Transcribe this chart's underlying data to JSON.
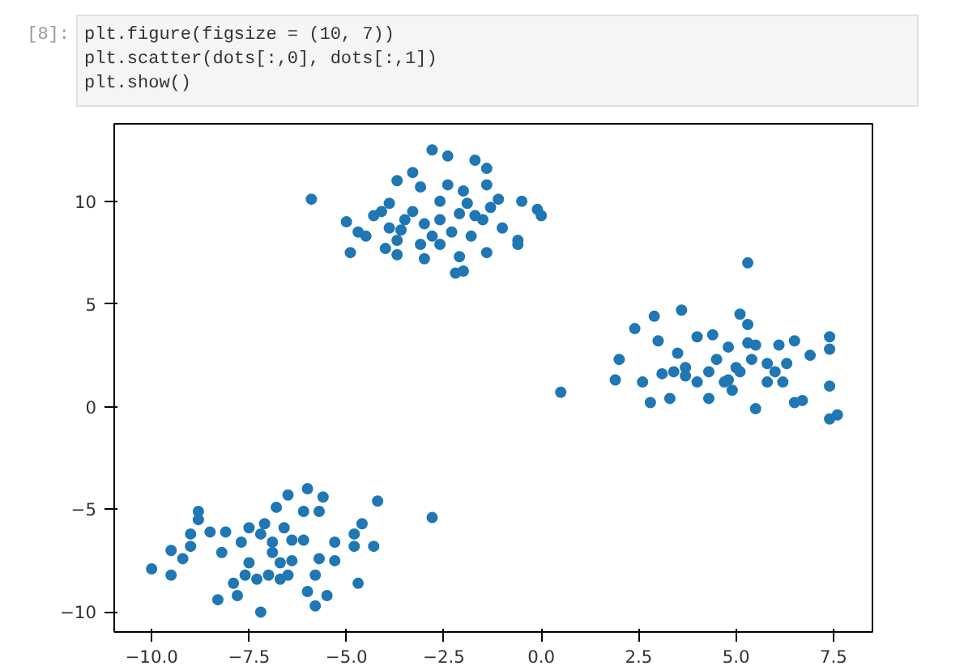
{
  "chart_data": {
    "type": "scatter",
    "annotations": [
      "[8]:",
      "plt.figure(figsize = (10, 7))",
      "plt.scatter(dots[:,0], dots[:,1])",
      "plt.show()"
    ],
    "marker": "circle",
    "grid": false,
    "xlim": [
      -10.96,
      8.5
    ],
    "ylim": [
      -10.97,
      13.77
    ],
    "xticks": [
      {
        "value": -10,
        "label": "−10.0"
      },
      {
        "value": -7.5,
        "label": "−7.5"
      },
      {
        "value": -5,
        "label": "−5.0"
      },
      {
        "value": -2.5,
        "label": "−2.5"
      },
      {
        "value": 0,
        "label": "0.0"
      },
      {
        "value": 2.5,
        "label": "2.5"
      },
      {
        "value": 5,
        "label": "5.0"
      },
      {
        "value": 7.5,
        "label": "7.5"
      }
    ],
    "yticks": [
      {
        "value": -10,
        "label": "−10"
      },
      {
        "value": -5,
        "label": "−5"
      },
      0,
      5,
      10
    ],
    "series": [
      {
        "color": "#1f77b4",
        "x": [
          -2.8,
          -2.4,
          -1.7,
          -1.4,
          -3.3,
          -3.7,
          -5.9,
          -5.0,
          -4.5,
          -4.3,
          -3.9,
          -3.6,
          -3.3,
          -3.0,
          -2.6,
          -2.4,
          -2.1,
          -2.0,
          -1.8,
          -1.4,
          -1.1,
          -1.0,
          -0.6,
          -0.5,
          -0.1,
          0.0,
          -0.6,
          -1.4,
          -2.1,
          -2.2,
          -2.0,
          -3.0,
          -3.7,
          -4.0,
          -4.7,
          -4.9,
          -3.1,
          -2.6,
          -3.5,
          -3.9,
          -2.6,
          -1.7,
          -1.5,
          -2.8,
          -2.3,
          -1.9,
          -3.1,
          -4.1,
          -1.3,
          -3.7,
          5.3,
          3.6,
          2.9,
          2.4,
          3.0,
          5.1,
          5.3,
          2.0,
          1.9,
          2.6,
          2.8,
          3.3,
          3.1,
          3.5,
          3.7,
          4.0,
          4.4,
          4.0,
          4.3,
          4.8,
          4.7,
          4.9,
          5.1,
          5.3,
          5.5,
          5.5,
          5.8,
          5.8,
          6.1,
          6.2,
          6.3,
          6.5,
          6.5,
          6.7,
          6.9,
          7.4,
          7.4,
          7.4,
          7.4,
          7.6,
          3.7,
          4.5,
          5.0,
          4.3,
          5.4,
          6.0,
          3.4,
          4.8,
          0.5,
          -10.0,
          -9.5,
          -9.5,
          -9.2,
          -9.0,
          -8.8,
          -8.8,
          -9.0,
          -8.5,
          -8.1,
          -8.2,
          -8.3,
          -7.8,
          -7.9,
          -7.6,
          -7.5,
          -7.7,
          -7.5,
          -7.1,
          -7.2,
          -7.0,
          -6.9,
          -6.8,
          -6.6,
          -6.7,
          -6.5,
          -6.0,
          -5.6,
          -5.7,
          -6.1,
          -6.4,
          -6.1,
          -6.4,
          -6.5,
          -6.0,
          -5.8,
          -5.5,
          -5.8,
          -5.7,
          -5.3,
          -5.3,
          -4.8,
          -4.6,
          -4.8,
          -4.7,
          -4.3,
          -4.2,
          -2.8,
          -7.2,
          -6.9,
          -7.3,
          -6.7
        ],
        "values": [
          12.5,
          12.2,
          12.0,
          11.6,
          11.4,
          11.0,
          10.1,
          9.0,
          8.3,
          9.3,
          9.9,
          8.6,
          9.5,
          8.9,
          10.0,
          10.8,
          9.4,
          10.5,
          8.3,
          10.8,
          10.1,
          8.7,
          8.1,
          10.0,
          9.6,
          9.3,
          7.9,
          7.5,
          7.3,
          6.5,
          6.6,
          7.2,
          7.4,
          7.7,
          8.5,
          7.5,
          7.9,
          7.9,
          9.1,
          8.7,
          9.1,
          9.3,
          9.1,
          8.3,
          8.5,
          9.9,
          10.7,
          9.5,
          9.7,
          8.1,
          7.0,
          4.7,
          4.4,
          3.8,
          3.2,
          4.5,
          4.0,
          2.3,
          1.3,
          1.2,
          0.2,
          0.4,
          1.6,
          2.6,
          1.9,
          3.4,
          3.5,
          1.2,
          0.4,
          2.9,
          1.2,
          0.8,
          1.7,
          3.1,
          3.0,
          -0.1,
          2.1,
          1.2,
          3.0,
          1.2,
          2.1,
          3.2,
          0.2,
          0.3,
          2.5,
          3.4,
          2.8,
          1.0,
          -0.6,
          -0.4,
          1.5,
          2.3,
          1.9,
          1.7,
          2.3,
          1.7,
          1.7,
          1.3,
          0.7,
          -7.9,
          -8.2,
          -7.0,
          -7.4,
          -6.8,
          -5.1,
          -5.5,
          -6.2,
          -6.1,
          -6.1,
          -7.1,
          -9.4,
          -9.2,
          -8.6,
          -8.2,
          -7.6,
          -6.6,
          -5.9,
          -5.7,
          -10.0,
          -8.2,
          -7.1,
          -4.9,
          -5.9,
          -7.6,
          -4.3,
          -4.0,
          -4.4,
          -5.1,
          -5.1,
          -6.5,
          -6.5,
          -7.5,
          -8.2,
          -9.0,
          -9.7,
          -9.2,
          -8.2,
          -7.4,
          -6.6,
          -7.5,
          -6.2,
          -5.7,
          -6.8,
          -8.6,
          -6.8,
          -4.6,
          -5.4,
          -6.2,
          -6.6,
          -8.4,
          -8.4
        ]
      }
    ]
  }
}
